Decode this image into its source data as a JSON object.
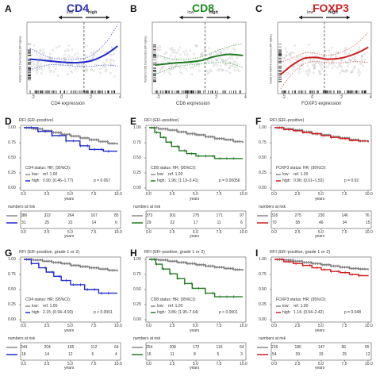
{
  "figure": {
    "row1": [
      {
        "letter": "A",
        "title": "CD4",
        "title_color": "#2a2fb8",
        "line_color": "#1f2bcc",
        "ci_color": "#5a64d8",
        "low_label": "low",
        "high_label": "high",
        "xlabel": "CD4 expression",
        "ylabel": "Partial for CD4 Cox Function (RFI Spline)",
        "x_ticks": [
          "-2",
          "0",
          "2",
          "4"
        ],
        "curve": [
          [
            -2.2,
            0.05
          ],
          [
            -1,
            -0.02
          ],
          [
            0,
            -0.08
          ],
          [
            1,
            -0.1
          ],
          [
            2,
            -0.02
          ],
          [
            3,
            0.25
          ],
          [
            3.8,
            0.6
          ]
        ],
        "ci_upper": [
          [
            -2.2,
            0.5
          ],
          [
            -1,
            0.15
          ],
          [
            0,
            0.05
          ],
          [
            1,
            0.05
          ],
          [
            2,
            0.2
          ],
          [
            3,
            0.75
          ],
          [
            3.8,
            1.5
          ]
        ],
        "ci_lower": [
          [
            -2.2,
            -0.4
          ],
          [
            -1,
            -0.2
          ],
          [
            0,
            -0.2
          ],
          [
            1,
            -0.25
          ],
          [
            2,
            -0.25
          ],
          [
            3,
            -0.2
          ],
          [
            3.8,
            -0.25
          ]
        ],
        "cutoff": 1.5
      },
      {
        "letter": "B",
        "title": "CD8",
        "title_color": "#1a8a1a",
        "line_color": "#1f7a1f",
        "ci_color": "#5aa85a",
        "low_label": "low",
        "high_label": "high",
        "xlabel": "CD8 expression",
        "ylabel": "Partial for CD8 Cox Function (RFI Spline)",
        "x_ticks": [
          "-2",
          "0",
          "2",
          "4"
        ],
        "curve": [
          [
            -2.2,
            -0.2
          ],
          [
            -1,
            -0.12
          ],
          [
            0,
            -0.08
          ],
          [
            1,
            0.0
          ],
          [
            1.8,
            0.15
          ],
          [
            2.8,
            0.25
          ],
          [
            3.8,
            0.2
          ]
        ],
        "ci_upper": [
          [
            -2.2,
            0.25
          ],
          [
            -1,
            0.05
          ],
          [
            0,
            0.05
          ],
          [
            1,
            0.15
          ],
          [
            2,
            0.4
          ],
          [
            3,
            0.6
          ],
          [
            3.8,
            0.7
          ]
        ],
        "ci_lower": [
          [
            -2.2,
            -0.6
          ],
          [
            -1,
            -0.3
          ],
          [
            0,
            -0.2
          ],
          [
            1,
            -0.15
          ],
          [
            2,
            -0.1
          ],
          [
            3,
            -0.15
          ],
          [
            3.8,
            -0.3
          ]
        ],
        "cutoff": 1.2
      },
      {
        "letter": "C",
        "title": "FOXP3",
        "title_color": "#cc2222",
        "line_color": "#d01f1f",
        "ci_color": "#d86a6a",
        "low_label": "low",
        "high_label": "high",
        "xlabel": "FOXP3 expression",
        "ylabel": "Partial for FOXP3 Cox Function (RFI Spline)",
        "x_ticks": [
          "-2",
          "0",
          "2",
          "4"
        ],
        "curve": [
          [
            -2.2,
            -0.6
          ],
          [
            -1.4,
            -0.2
          ],
          [
            -0.6,
            0.08
          ],
          [
            0.2,
            0.12
          ],
          [
            1,
            0.05
          ],
          [
            2,
            0.1
          ],
          [
            3,
            0.3
          ],
          [
            3.8,
            0.55
          ]
        ],
        "ci_upper": [
          [
            -2.2,
            -0.1
          ],
          [
            -1.4,
            0.1
          ],
          [
            -0.6,
            0.3
          ],
          [
            0.2,
            0.3
          ],
          [
            1,
            0.2
          ],
          [
            2,
            0.35
          ],
          [
            3,
            0.7
          ],
          [
            3.8,
            1.2
          ]
        ],
        "ci_lower": [
          [
            -2.2,
            -1.2
          ],
          [
            -1.4,
            -0.55
          ],
          [
            -0.6,
            -0.15
          ],
          [
            0.2,
            -0.05
          ],
          [
            1,
            -0.1
          ],
          [
            2,
            -0.1
          ],
          [
            3,
            -0.05
          ],
          [
            3.8,
            -0.1
          ]
        ],
        "cutoff": 0.8
      }
    ],
    "km_panels": [
      {
        "letter": "D",
        "header": "RFI (ER–positive)",
        "status_label": "CD4 status: HR; (95%CI):",
        "low_text": "low:",
        "low_ref": "ref. 1.00",
        "high_text": "high:",
        "high_hr": "0.90; (0.46–1.77)",
        "p_value": "p = 0.067",
        "high_color": "#1f2bcc",
        "risk": {
          "low": [
            "386",
            "322",
            "264",
            "167",
            "85"
          ],
          "high": [
            "31",
            "25",
            "22",
            "14",
            "6"
          ]
        },
        "low_curve": [
          [
            0,
            1.0
          ],
          [
            1,
            0.98
          ],
          [
            2,
            0.95
          ],
          [
            3,
            0.92
          ],
          [
            4,
            0.89
          ],
          [
            5,
            0.86
          ],
          [
            6,
            0.83
          ],
          [
            7,
            0.8
          ],
          [
            8,
            0.77
          ],
          [
            9,
            0.74
          ],
          [
            10,
            0.72
          ]
        ],
        "high_curve": [
          [
            0,
            1.0
          ],
          [
            1.5,
            1.0
          ],
          [
            1.5,
            0.94
          ],
          [
            3,
            0.94
          ],
          [
            3,
            0.87
          ],
          [
            4.5,
            0.87
          ],
          [
            4.5,
            0.78
          ],
          [
            6,
            0.78
          ],
          [
            6,
            0.7
          ],
          [
            7,
            0.7
          ],
          [
            7,
            0.64
          ],
          [
            8.5,
            0.64
          ],
          [
            8.5,
            0.61
          ],
          [
            10,
            0.61
          ]
        ]
      },
      {
        "letter": "E",
        "header": "RFI (ER–positive)",
        "status_label": "CD8 status: HR; (95%CI):",
        "low_text": "low:",
        "low_ref": "ref. 1.00",
        "high_text": "high:",
        "high_hr": "1.96; (1.13–3.41)",
        "p_value": "p = 0.00056",
        "high_color": "#1f7a1f",
        "risk": {
          "low": [
            "373",
            "301",
            "275",
            "171",
            "97"
          ],
          "high": [
            "29",
            "22",
            "17",
            "11",
            "6"
          ]
        },
        "low_curve": [
          [
            0,
            1.0
          ],
          [
            1,
            0.98
          ],
          [
            2,
            0.96
          ],
          [
            3,
            0.93
          ],
          [
            4,
            0.9
          ],
          [
            5,
            0.88
          ],
          [
            6,
            0.85
          ],
          [
            7,
            0.82
          ],
          [
            8,
            0.8
          ],
          [
            9,
            0.77
          ],
          [
            10,
            0.75
          ]
        ],
        "high_curve": [
          [
            0,
            1.0
          ],
          [
            0.6,
            1.0
          ],
          [
            0.6,
            0.92
          ],
          [
            1.2,
            0.92
          ],
          [
            1.2,
            0.84
          ],
          [
            1.8,
            0.84
          ],
          [
            1.8,
            0.76
          ],
          [
            2.4,
            0.76
          ],
          [
            2.4,
            0.69
          ],
          [
            3.2,
            0.69
          ],
          [
            3.2,
            0.62
          ],
          [
            4,
            0.62
          ],
          [
            4,
            0.57
          ],
          [
            5,
            0.57
          ],
          [
            5,
            0.53
          ],
          [
            7,
            0.53
          ],
          [
            7,
            0.49
          ],
          [
            10,
            0.49
          ]
        ]
      },
      {
        "letter": "F",
        "header": "RFI (ER–positive)",
        "status_label": "FOXP3 status: HR; (95%CI):",
        "low_text": "low:",
        "low_ref": "ref. 1.00",
        "high_text": "high:",
        "high_hr": "0.96; (0.61–1.53)",
        "p_value": "p = 0.92",
        "high_color": "#d01f1f",
        "risk": {
          "low": [
            "316",
            "275",
            "230",
            "146",
            "76"
          ],
          "high": [
            "70",
            "58",
            "46",
            "34",
            "15"
          ]
        },
        "low_curve": [
          [
            0,
            1.0
          ],
          [
            1,
            0.98
          ],
          [
            2,
            0.96
          ],
          [
            3,
            0.93
          ],
          [
            4,
            0.9
          ],
          [
            5,
            0.88
          ],
          [
            6,
            0.85
          ],
          [
            7,
            0.83
          ],
          [
            8,
            0.8
          ],
          [
            9,
            0.78
          ],
          [
            10,
            0.76
          ]
        ],
        "high_curve": [
          [
            0,
            1.0
          ],
          [
            1,
            0.97
          ],
          [
            2,
            0.95
          ],
          [
            3,
            0.92
          ],
          [
            4,
            0.9
          ],
          [
            5,
            0.87
          ],
          [
            6,
            0.84
          ],
          [
            7,
            0.82
          ],
          [
            8,
            0.79
          ],
          [
            9,
            0.78
          ],
          [
            10,
            0.76
          ]
        ]
      },
      {
        "letter": "G",
        "header": "RFI (ER–positive, grade 1 or 2)",
        "status_label": "CD4 status: HR; (95%CI):",
        "low_text": "low:",
        "low_ref": "ref. 1.00",
        "high_text": "high:",
        "high_hr": "2.15; (0.94–4.93)",
        "p_value": "p < 0.0001",
        "high_color": "#1f2bcc",
        "risk": {
          "low": [
            "244",
            "204",
            "165",
            "112",
            "64"
          ],
          "high": [
            "18",
            "14",
            "12",
            "6",
            "4"
          ]
        },
        "low_curve": [
          [
            0,
            1.0
          ],
          [
            1,
            0.99
          ],
          [
            2,
            0.97
          ],
          [
            3,
            0.95
          ],
          [
            4,
            0.93
          ],
          [
            5,
            0.9
          ],
          [
            6,
            0.88
          ],
          [
            7,
            0.86
          ],
          [
            8,
            0.84
          ],
          [
            9,
            0.82
          ],
          [
            10,
            0.8
          ]
        ],
        "high_curve": [
          [
            0,
            1.0
          ],
          [
            0.8,
            1.0
          ],
          [
            0.8,
            0.93
          ],
          [
            1.6,
            0.93
          ],
          [
            1.6,
            0.86
          ],
          [
            2.4,
            0.86
          ],
          [
            2.4,
            0.79
          ],
          [
            3.2,
            0.79
          ],
          [
            3.2,
            0.72
          ],
          [
            4,
            0.72
          ],
          [
            4,
            0.65
          ],
          [
            5,
            0.65
          ],
          [
            5,
            0.58
          ],
          [
            6.5,
            0.58
          ],
          [
            6.5,
            0.5
          ],
          [
            8,
            0.5
          ],
          [
            8,
            0.44
          ],
          [
            10,
            0.44
          ]
        ]
      },
      {
        "letter": "H",
        "header": "RFI (ER–positive, grade 1 or 2)",
        "status_label": "CD8 status: HR; (95%CI):",
        "low_text": "low:",
        "low_ref": "ref. 1.00",
        "high_text": "high:",
        "high_hr": "3.86; (1.95–7.64)",
        "p_value": "p < 0.0001",
        "high_color": "#1f7a1f",
        "risk": {
          "low": [
            "254",
            "208",
            "172",
            "116",
            "64"
          ],
          "high": [
            "16",
            "11",
            "8",
            "5",
            "3"
          ]
        },
        "low_curve": [
          [
            0,
            1.0
          ],
          [
            1,
            0.99
          ],
          [
            2,
            0.97
          ],
          [
            3,
            0.95
          ],
          [
            4,
            0.93
          ],
          [
            5,
            0.91
          ],
          [
            6,
            0.89
          ],
          [
            7,
            0.87
          ],
          [
            8,
            0.85
          ],
          [
            9,
            0.83
          ],
          [
            10,
            0.81
          ]
        ],
        "high_curve": [
          [
            0,
            1.0
          ],
          [
            0.7,
            1.0
          ],
          [
            0.7,
            0.92
          ],
          [
            1.4,
            0.92
          ],
          [
            1.4,
            0.84
          ],
          [
            2.2,
            0.84
          ],
          [
            2.2,
            0.76
          ],
          [
            3,
            0.76
          ],
          [
            3,
            0.68
          ],
          [
            3.8,
            0.68
          ],
          [
            3.8,
            0.6
          ],
          [
            4.6,
            0.6
          ],
          [
            4.6,
            0.52
          ],
          [
            6,
            0.52
          ],
          [
            6,
            0.44
          ],
          [
            7,
            0.44
          ],
          [
            7,
            0.38
          ],
          [
            10,
            0.38
          ]
        ]
      },
      {
        "letter": "I",
        "header": "RFI (ER–positive, grade 1 or 2)",
        "status_label": "FOXP3 status: HR; (95%CI):",
        "low_text": "low:",
        "low_ref": "ref. 1.00",
        "high_text": "high:",
        "high_hr": "1.14; (0.54–2.42)",
        "p_value": "p = 0.048",
        "high_color": "#d01f1f",
        "risk": {
          "low": [
            "216",
            "180",
            "147",
            "96",
            "55"
          ],
          "high": [
            "54",
            "39",
            "33",
            "25",
            "12"
          ]
        },
        "low_curve": [
          [
            0,
            1.0
          ],
          [
            1,
            0.99
          ],
          [
            2,
            0.97
          ],
          [
            3,
            0.95
          ],
          [
            4,
            0.93
          ],
          [
            5,
            0.91
          ],
          [
            6,
            0.89
          ],
          [
            7,
            0.87
          ],
          [
            8,
            0.85
          ],
          [
            9,
            0.84
          ],
          [
            10,
            0.82
          ]
        ],
        "high_curve": [
          [
            0,
            1.0
          ],
          [
            1,
            0.96
          ],
          [
            2,
            0.93
          ],
          [
            3,
            0.9
          ],
          [
            4,
            0.86
          ],
          [
            5,
            0.83
          ],
          [
            6,
            0.8
          ],
          [
            7,
            0.78
          ],
          [
            8,
            0.75
          ],
          [
            9,
            0.73
          ],
          [
            10,
            0.72
          ]
        ]
      }
    ],
    "km_y_ticks": [
      "1.00",
      "0.75",
      "0.50",
      "0.25",
      "0.00"
    ],
    "km_x_ticks": [
      "0.0",
      "2.5",
      "5.0",
      "7.5",
      "10.0"
    ],
    "km_xlabel": "years",
    "numbers_at_risk_label": "numbers at risk",
    "low_color": "#888888"
  }
}
